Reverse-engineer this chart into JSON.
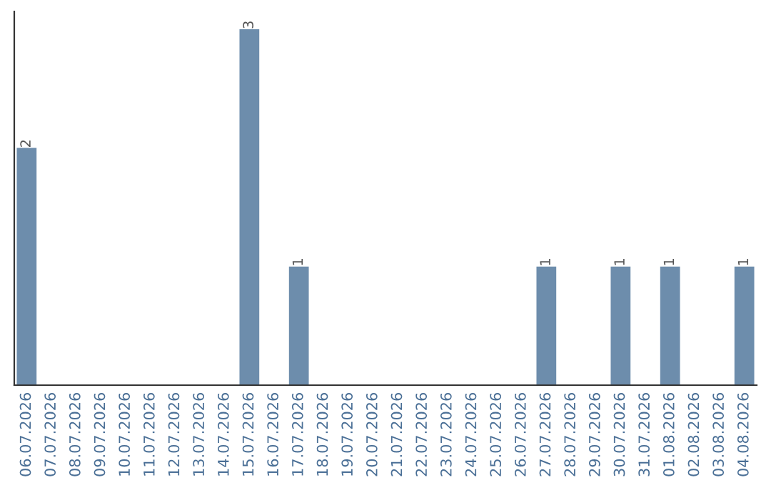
{
  "chart_data": {
    "type": "bar",
    "categories": [
      "06.07.2026",
      "07.07.2026",
      "08.07.2026",
      "09.07.2026",
      "10.07.2026",
      "11.07.2026",
      "12.07.2026",
      "13.07.2026",
      "14.07.2026",
      "15.07.2026",
      "16.07.2026",
      "17.07.2026",
      "18.07.2026",
      "19.07.2026",
      "20.07.2026",
      "21.07.2026",
      "22.07.2026",
      "23.07.2026",
      "24.07.2026",
      "25.07.2026",
      "26.07.2026",
      "27.07.2026",
      "28.07.2026",
      "29.07.2026",
      "30.07.2026",
      "31.07.2026",
      "01.08.2026",
      "02.08.2026",
      "03.08.2026",
      "04.08.2026"
    ],
    "values": [
      2,
      0,
      0,
      0,
      0,
      0,
      0,
      0,
      0,
      3,
      0,
      1,
      0,
      0,
      0,
      0,
      0,
      0,
      0,
      0,
      0,
      1,
      0,
      0,
      1,
      0,
      1,
      0,
      0,
      1
    ],
    "value_labels": [
      "2",
      null,
      null,
      null,
      null,
      null,
      null,
      null,
      null,
      "3",
      null,
      "1",
      null,
      null,
      null,
      null,
      null,
      null,
      null,
      null,
      null,
      "1",
      null,
      null,
      "1",
      null,
      "1",
      null,
      null,
      "1"
    ],
    "color": "#6d8dac",
    "tick_labels": "x",
    "grid": false,
    "legend": false
  }
}
